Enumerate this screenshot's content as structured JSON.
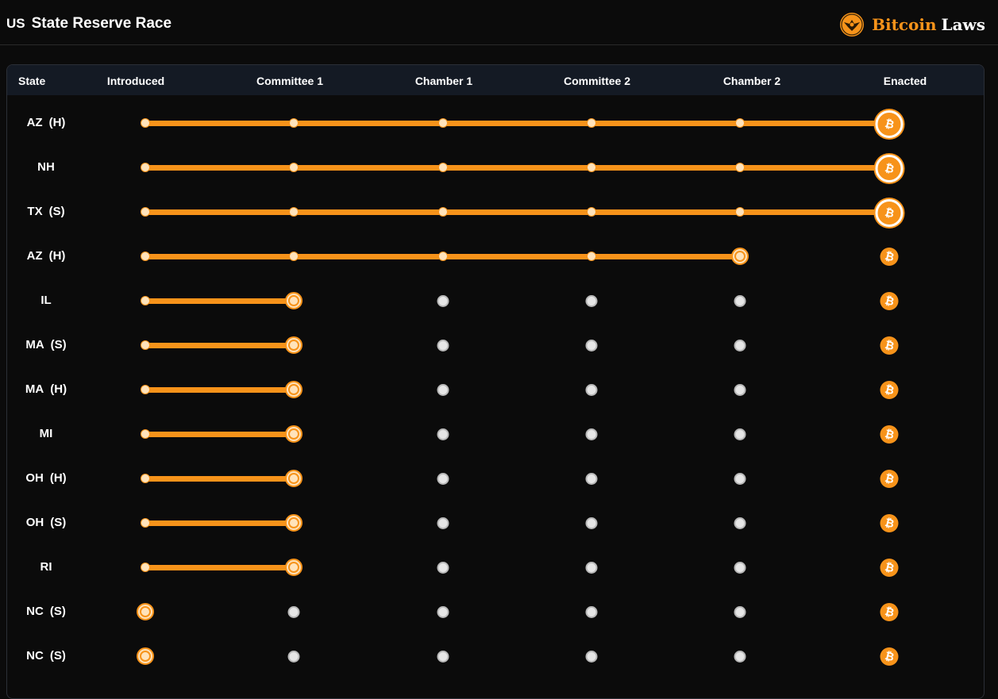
{
  "header": {
    "flag": "US",
    "title": "State Reserve Race",
    "brand_accent": "Bitcoin",
    "brand_rest": "Laws"
  },
  "table": {
    "columns": [
      "State",
      "Introduced",
      "Committee 1",
      "Chamber 1",
      "Committee 2",
      "Chamber 2",
      "Enacted"
    ],
    "rows": [
      {
        "state": "AZ",
        "chamber": "(H)",
        "stage": 5
      },
      {
        "state": "NH",
        "chamber": "",
        "stage": 5
      },
      {
        "state": "TX",
        "chamber": "(S)",
        "stage": 5
      },
      {
        "state": "AZ",
        "chamber": "(H)",
        "stage": 4
      },
      {
        "state": "IL",
        "chamber": "",
        "stage": 1
      },
      {
        "state": "MA",
        "chamber": "(S)",
        "stage": 1
      },
      {
        "state": "MA",
        "chamber": "(H)",
        "stage": 1
      },
      {
        "state": "MI",
        "chamber": "",
        "stage": 1
      },
      {
        "state": "OH",
        "chamber": "(H)",
        "stage": 1
      },
      {
        "state": "OH",
        "chamber": "(S)",
        "stage": 1
      },
      {
        "state": "RI",
        "chamber": "",
        "stage": 1
      },
      {
        "state": "NC",
        "chamber": "(S)",
        "stage": 0
      },
      {
        "state": "NC",
        "chamber": "(S)",
        "stage": 0
      }
    ]
  },
  "colors": {
    "accent": "#f7931a",
    "background": "#0b0b0b",
    "header_row": "#141a24",
    "pending_dot": "#e6e6e6"
  },
  "icons": {
    "enacted": "bitcoin-icon",
    "brand": "eagle-seal-icon"
  }
}
